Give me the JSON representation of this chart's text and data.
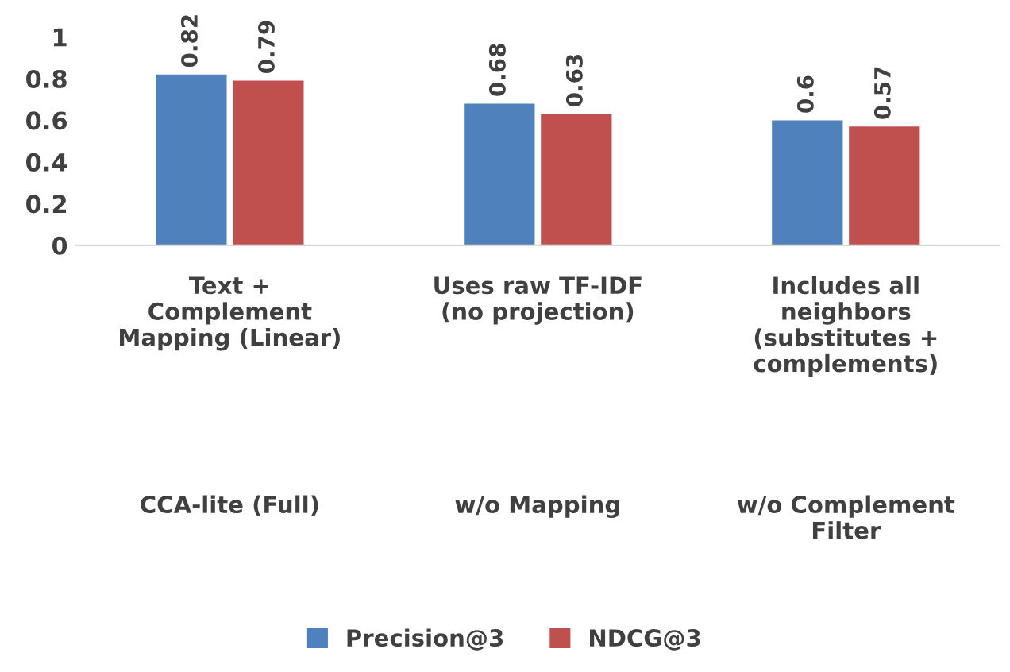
{
  "chart_data": {
    "type": "bar",
    "categories": [
      "Text +\nComplement\nMapping (Linear)",
      "Uses raw TF-IDF\n(no projection)",
      "Includes all\nneighbors\n(substitutes +\ncomplements)"
    ],
    "series": [
      {
        "name": "Precision@3",
        "color": "#4f81bd",
        "values": [
          0.82,
          0.68,
          0.6
        ]
      },
      {
        "name": "NDCG@3",
        "color": "#c0504d",
        "values": [
          0.79,
          0.63,
          0.57
        ]
      }
    ],
    "annotations": [
      "CCA-lite (Full)",
      "w/o Mapping",
      "w/o Complement\nFilter"
    ],
    "ylim": [
      0,
      1
    ],
    "yticks": [
      0,
      0.2,
      0.4,
      0.6,
      0.8,
      1
    ],
    "data_labels": true,
    "grid": false,
    "legend": "bottom"
  }
}
